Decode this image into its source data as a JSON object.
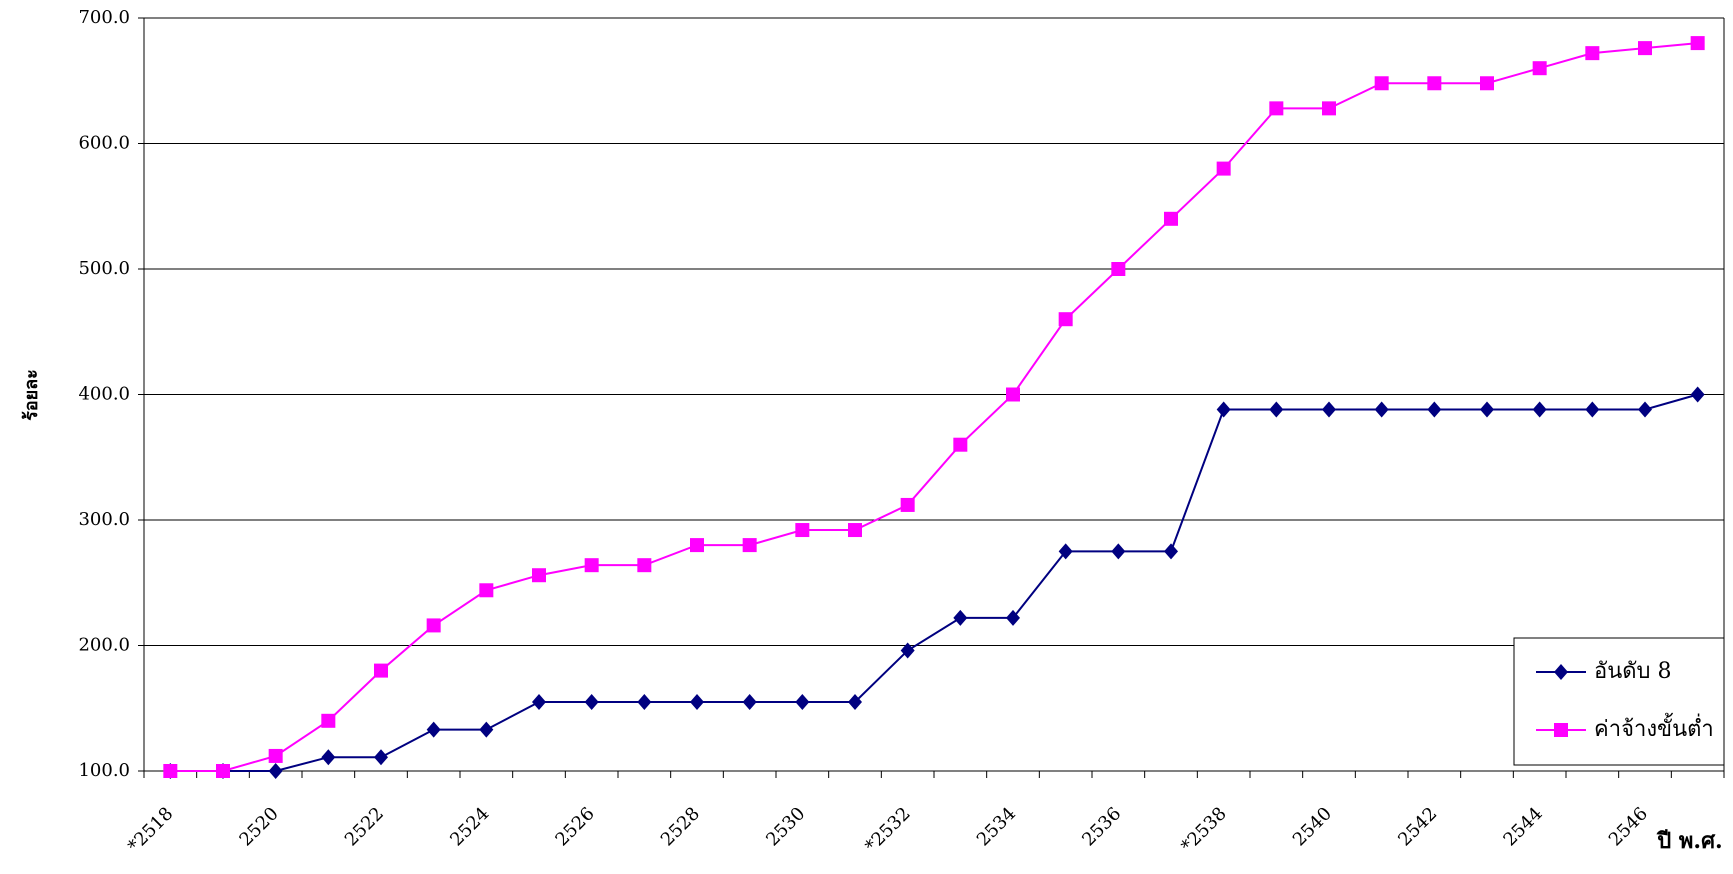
{
  "chart_data": {
    "type": "line",
    "y_label": "ร้อยละ",
    "x_label": "ปี พ.ศ.",
    "categories": [
      "*2518",
      null,
      "2520",
      null,
      "2522",
      null,
      "2524",
      null,
      "2526",
      null,
      "2528",
      null,
      "2530",
      null,
      "*2532",
      null,
      "2534",
      null,
      "2536",
      null,
      "*2538",
      null,
      "2540",
      null,
      "2542",
      null,
      "2544",
      null,
      "2546",
      null
    ],
    "series": [
      {
        "name": "อันดับ 8",
        "color": "#000080",
        "marker": "diamond",
        "values": [
          100,
          100,
          100,
          111,
          111,
          133,
          133,
          155,
          155,
          155,
          155,
          155,
          155,
          155,
          196,
          222,
          222,
          275,
          275,
          275,
          388,
          388,
          388,
          388,
          388,
          388,
          388,
          388,
          388,
          400
        ]
      },
      {
        "name": "ค่าจ้างขั้นต่ำ",
        "color": "#ff00ff",
        "marker": "square",
        "values": [
          100,
          100,
          112,
          140,
          180,
          216,
          244,
          256,
          264,
          264,
          280,
          280,
          292,
          292,
          312,
          360,
          400,
          460,
          500,
          540,
          580,
          628,
          628,
          648,
          648,
          648,
          660,
          672,
          676,
          680
        ]
      }
    ],
    "ylim": [
      100,
      700
    ],
    "yticks": [
      {
        "value": 100,
        "label": "100.0"
      },
      {
        "value": 200,
        "label": "200.0"
      },
      {
        "value": 300,
        "label": "300.0"
      },
      {
        "value": 400,
        "label": "400.0"
      },
      {
        "value": 500,
        "label": "500.0"
      },
      {
        "value": 600,
        "label": "600.0"
      },
      {
        "value": 700,
        "label": "700.0"
      }
    ],
    "grid": true,
    "legend": "lower right"
  }
}
